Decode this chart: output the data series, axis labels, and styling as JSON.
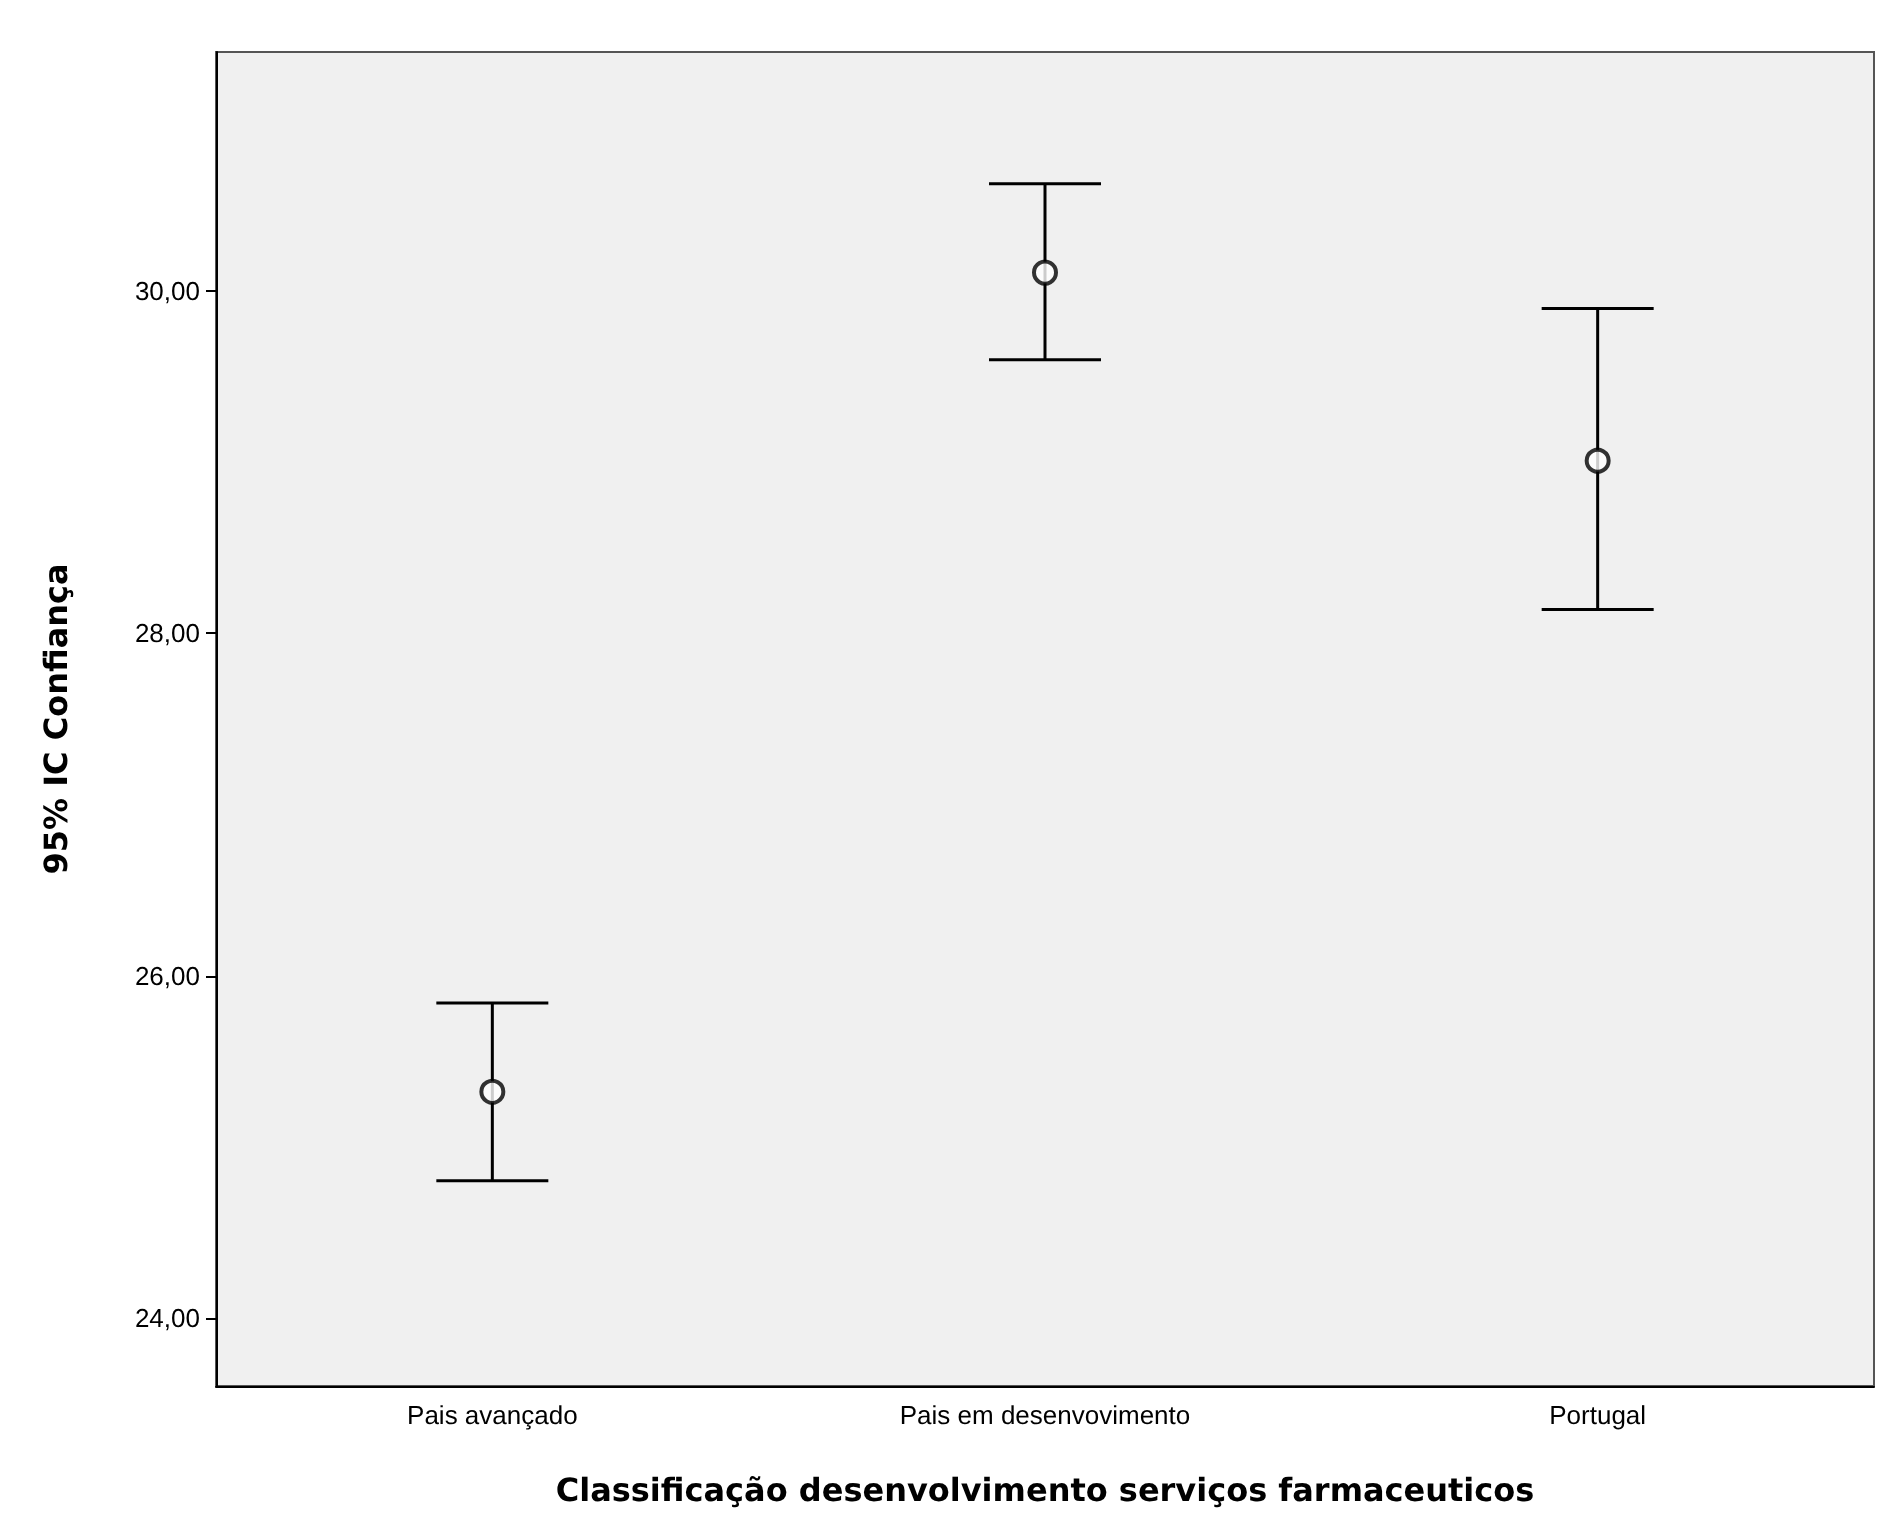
{
  "chart_data": {
    "type": "scatter",
    "xlabel": "Classificação desenvolvimento serviços farmaceuticos",
    "ylabel": "95% IC Confiança",
    "categories": [
      "Pais avançado",
      "Pais em desenvovimento",
      "Portugal"
    ],
    "series": [
      {
        "color": "#000000",
        "values": [
          25.32,
          30.11,
          29.01
        ],
        "errors": [
          [
            24.8,
            25.84
          ],
          [
            29.6,
            30.63
          ],
          [
            28.14,
            29.9
          ]
        ]
      }
    ],
    "ylim": [
      23.6,
      31.4
    ],
    "yticks": [
      {
        "value": 24,
        "label": "24,00"
      },
      {
        "value": 26,
        "label": "26,00"
      },
      {
        "value": 28,
        "label": "28,00"
      },
      {
        "value": 30,
        "label": "30,00"
      }
    ],
    "marker": "circle",
    "grid": false
  }
}
